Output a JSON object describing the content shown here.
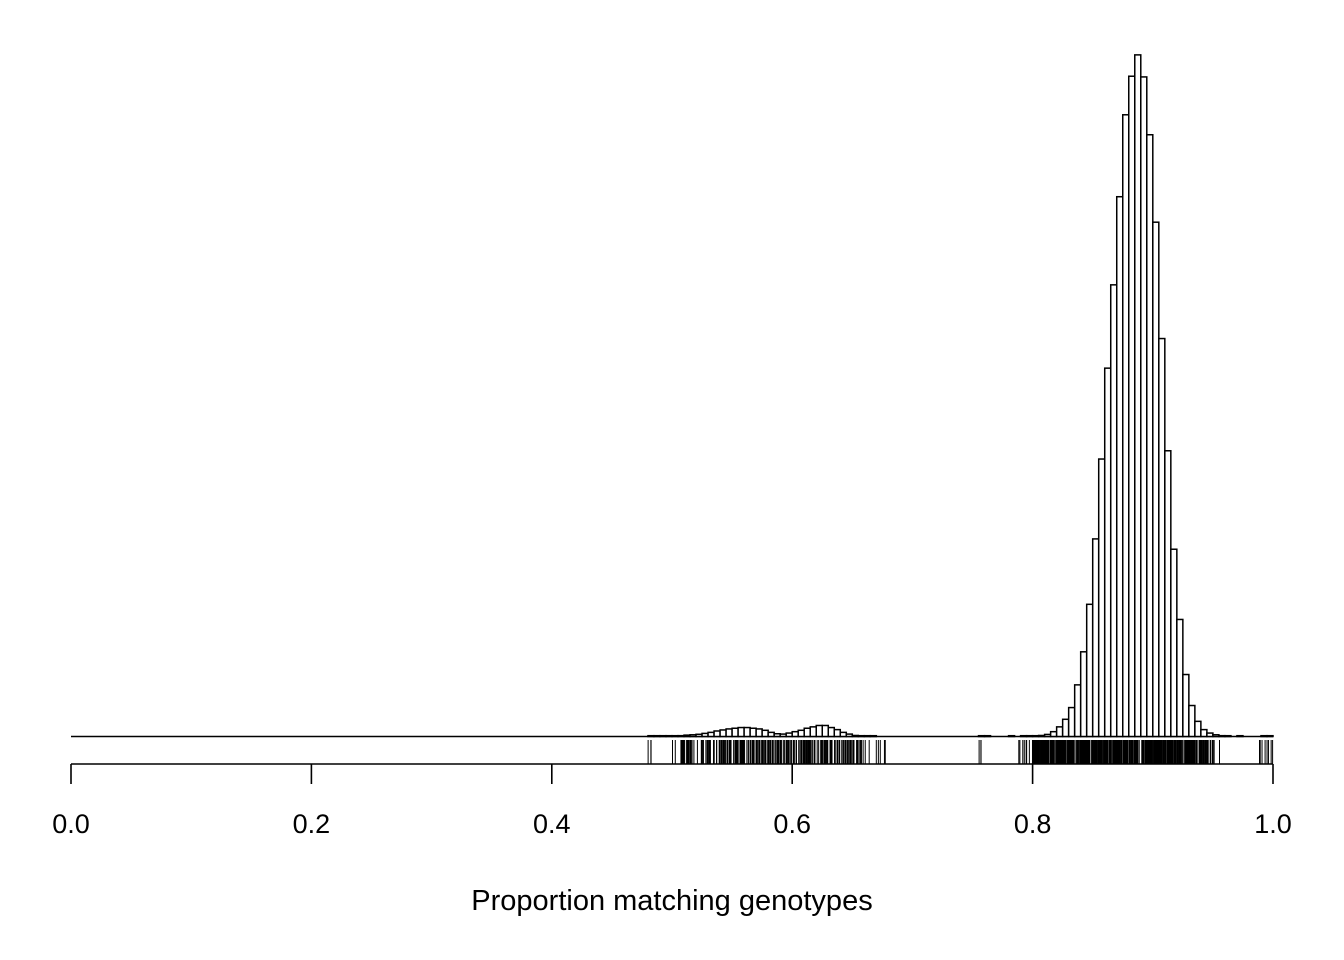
{
  "chart_data": {
    "type": "bar",
    "title": "",
    "xlabel": "Proportion matching genotypes",
    "ylabel": "",
    "xlim": [
      0,
      1
    ],
    "ylim": [
      0,
      1000
    ],
    "bin_width": 0.005,
    "grid": false,
    "legend": "none",
    "bar_fill": "#ffffff",
    "bar_stroke": "#000000",
    "x_ticks": [
      0,
      0.2,
      0.4,
      0.6,
      0.8,
      1.0
    ],
    "x_tick_labels": [
      "0.0",
      "0.2",
      "0.4",
      "0.6",
      "0.8",
      "1.0"
    ],
    "bins": [
      {
        "x": 0.48,
        "y": 0.5
      },
      {
        "x": 0.485,
        "y": 0.5
      },
      {
        "x": 0.49,
        "y": 0.5
      },
      {
        "x": 0.495,
        "y": 0.5
      },
      {
        "x": 0.5,
        "y": 0.8
      },
      {
        "x": 0.505,
        "y": 1.2
      },
      {
        "x": 0.51,
        "y": 2
      },
      {
        "x": 0.515,
        "y": 2.5
      },
      {
        "x": 0.52,
        "y": 3.2
      },
      {
        "x": 0.525,
        "y": 4.5
      },
      {
        "x": 0.53,
        "y": 6
      },
      {
        "x": 0.535,
        "y": 8
      },
      {
        "x": 0.54,
        "y": 9.5
      },
      {
        "x": 0.545,
        "y": 11
      },
      {
        "x": 0.55,
        "y": 12
      },
      {
        "x": 0.555,
        "y": 13
      },
      {
        "x": 0.56,
        "y": 13
      },
      {
        "x": 0.565,
        "y": 12
      },
      {
        "x": 0.57,
        "y": 11
      },
      {
        "x": 0.575,
        "y": 9
      },
      {
        "x": 0.58,
        "y": 6
      },
      {
        "x": 0.585,
        "y": 4
      },
      {
        "x": 0.59,
        "y": 3.5
      },
      {
        "x": 0.595,
        "y": 5
      },
      {
        "x": 0.6,
        "y": 7
      },
      {
        "x": 0.605,
        "y": 9
      },
      {
        "x": 0.61,
        "y": 12
      },
      {
        "x": 0.615,
        "y": 14
      },
      {
        "x": 0.62,
        "y": 16
      },
      {
        "x": 0.625,
        "y": 16
      },
      {
        "x": 0.63,
        "y": 13
      },
      {
        "x": 0.635,
        "y": 10
      },
      {
        "x": 0.64,
        "y": 6
      },
      {
        "x": 0.645,
        "y": 3.5
      },
      {
        "x": 0.65,
        "y": 1.5
      },
      {
        "x": 0.655,
        "y": 0.8
      },
      {
        "x": 0.66,
        "y": 0.5
      },
      {
        "x": 0.665,
        "y": 0.3
      },
      {
        "x": 0.755,
        "y": 0.3
      },
      {
        "x": 0.76,
        "y": 0.3
      },
      {
        "x": 0.78,
        "y": 0.3
      },
      {
        "x": 0.79,
        "y": 0.4
      },
      {
        "x": 0.795,
        "y": 0.5
      },
      {
        "x": 0.8,
        "y": 0.8
      },
      {
        "x": 0.805,
        "y": 1.5
      },
      {
        "x": 0.81,
        "y": 3
      },
      {
        "x": 0.815,
        "y": 7
      },
      {
        "x": 0.82,
        "y": 14
      },
      {
        "x": 0.825,
        "y": 25
      },
      {
        "x": 0.83,
        "y": 42
      },
      {
        "x": 0.835,
        "y": 75
      },
      {
        "x": 0.84,
        "y": 123
      },
      {
        "x": 0.845,
        "y": 192
      },
      {
        "x": 0.85,
        "y": 287
      },
      {
        "x": 0.855,
        "y": 403
      },
      {
        "x": 0.86,
        "y": 535
      },
      {
        "x": 0.865,
        "y": 656
      },
      {
        "x": 0.87,
        "y": 784
      },
      {
        "x": 0.875,
        "y": 903
      },
      {
        "x": 0.88,
        "y": 959
      },
      {
        "x": 0.885,
        "y": 990
      },
      {
        "x": 0.89,
        "y": 958
      },
      {
        "x": 0.895,
        "y": 874
      },
      {
        "x": 0.9,
        "y": 747
      },
      {
        "x": 0.905,
        "y": 578
      },
      {
        "x": 0.91,
        "y": 415
      },
      {
        "x": 0.915,
        "y": 272
      },
      {
        "x": 0.92,
        "y": 170
      },
      {
        "x": 0.925,
        "y": 90
      },
      {
        "x": 0.93,
        "y": 45
      },
      {
        "x": 0.935,
        "y": 22
      },
      {
        "x": 0.94,
        "y": 10
      },
      {
        "x": 0.945,
        "y": 5
      },
      {
        "x": 0.95,
        "y": 2.5
      },
      {
        "x": 0.955,
        "y": 1.2
      },
      {
        "x": 0.96,
        "y": 0.5
      },
      {
        "x": 0.97,
        "y": 0.3
      },
      {
        "x": 0.99,
        "y": 0.3
      },
      {
        "x": 0.995,
        "y": 0.3
      }
    ],
    "rug_clusters": [
      {
        "from": 0.478,
        "to": 0.485,
        "count": 3
      },
      {
        "from": 0.498,
        "to": 0.512,
        "count": 10
      },
      {
        "from": 0.512,
        "to": 0.658,
        "count": 260
      },
      {
        "from": 0.658,
        "to": 0.682,
        "count": 8
      },
      {
        "from": 0.752,
        "to": 0.76,
        "count": 3
      },
      {
        "from": 0.788,
        "to": 0.8,
        "count": 8
      },
      {
        "from": 0.8,
        "to": 0.945,
        "count": 520
      },
      {
        "from": 0.945,
        "to": 0.956,
        "count": 8
      },
      {
        "from": 0.985,
        "to": 1.0,
        "count": 8
      }
    ]
  }
}
